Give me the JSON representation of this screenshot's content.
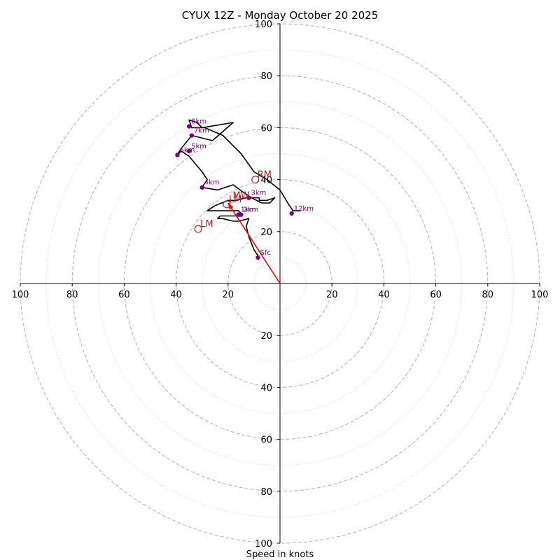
{
  "chart_data": {
    "type": "hodograph",
    "title": "CYUX 12Z - Monday October 20 2025",
    "xlabel": "Speed in knots",
    "range": 100,
    "rings": [
      20,
      40,
      60,
      80,
      100
    ],
    "minor_rings": [
      10,
      30,
      50,
      70,
      90
    ],
    "ticks": [
      "100",
      "80",
      "60",
      "40",
      "20",
      "20",
      "40",
      "60",
      "80",
      "100"
    ],
    "tick_values": [
      -100,
      -80,
      -60,
      -40,
      -20,
      20,
      40,
      60,
      80,
      100
    ],
    "trace": [
      [
        -8,
        10
      ],
      [
        -10,
        13
      ],
      [
        -12,
        18
      ],
      [
        -13,
        22
      ],
      [
        -12,
        25
      ],
      [
        -16,
        24
      ],
      [
        -18,
        24
      ],
      [
        -22,
        25
      ],
      [
        -24,
        25
      ],
      [
        -23,
        26
      ],
      [
        -20,
        26
      ],
      [
        -16,
        26
      ],
      [
        -15,
        27
      ],
      [
        -16,
        28
      ],
      [
        -22,
        28
      ],
      [
        -28,
        28
      ],
      [
        -25,
        30
      ],
      [
        -20,
        32
      ],
      [
        -17,
        32
      ],
      [
        -13,
        33
      ],
      [
        -8,
        33
      ],
      [
        -8,
        32
      ],
      [
        -5,
        32
      ],
      [
        -2,
        33
      ],
      [
        -4,
        31
      ],
      [
        -5,
        31
      ],
      [
        -7,
        31
      ],
      [
        -9,
        32
      ],
      [
        -11,
        33
      ],
      [
        -14,
        35
      ],
      [
        -18,
        38
      ],
      [
        -24,
        36
      ],
      [
        -30,
        37
      ],
      [
        -28,
        40
      ],
      [
        -30,
        43
      ],
      [
        -35,
        49
      ],
      [
        -38,
        51
      ],
      [
        -40,
        49
      ],
      [
        -38,
        52
      ],
      [
        -34,
        57
      ],
      [
        -26,
        55
      ],
      [
        -18,
        62
      ],
      [
        -30,
        60
      ],
      [
        -32,
        62
      ],
      [
        -35,
        63
      ],
      [
        -34,
        60
      ],
      [
        -29,
        60
      ],
      [
        -22,
        57
      ],
      [
        -15,
        50
      ],
      [
        -10,
        43
      ],
      [
        -5,
        40
      ],
      [
        0,
        36
      ],
      [
        3,
        31
      ],
      [
        5,
        28
      ],
      [
        8,
        28
      ]
    ],
    "height_markers": [
      {
        "label": "Sfc",
        "u": -8.5,
        "v": 10
      },
      {
        "label": "1km",
        "u": -16,
        "v": 26.5
      },
      {
        "label": "2km",
        "u": -15,
        "v": 26.5
      },
      {
        "label": "3km",
        "u": -12,
        "v": 33
      },
      {
        "label": "4km",
        "u": -30,
        "v": 37
      },
      {
        "label": "5km",
        "u": -35,
        "v": 51
      },
      {
        "label": "6km",
        "u": -39.5,
        "v": 49.5
      },
      {
        "label": "7km",
        "u": -34,
        "v": 57
      },
      {
        "label": "8km",
        "u": -35,
        "v": 60.5
      },
      {
        "label": "12km",
        "u": 4.5,
        "v": 27
      }
    ],
    "storm_motions": [
      {
        "label": "RM",
        "u": -9.5,
        "v": 40
      },
      {
        "label": "LM",
        "u": -31.5,
        "v": 21
      },
      {
        "label": "LM",
        "u": -20.5,
        "v": 30.5
      },
      {
        "label": "MW",
        "u": -19,
        "v": 32
      }
    ],
    "mean_wind_vector": {
      "u": -20,
      "v": 31
    },
    "colors": {
      "trace": "#000000",
      "marker": "#800080",
      "storm": "#b22222",
      "vector": "#ff0000",
      "grid": "#b0b0b0",
      "axis": "#000000"
    }
  }
}
